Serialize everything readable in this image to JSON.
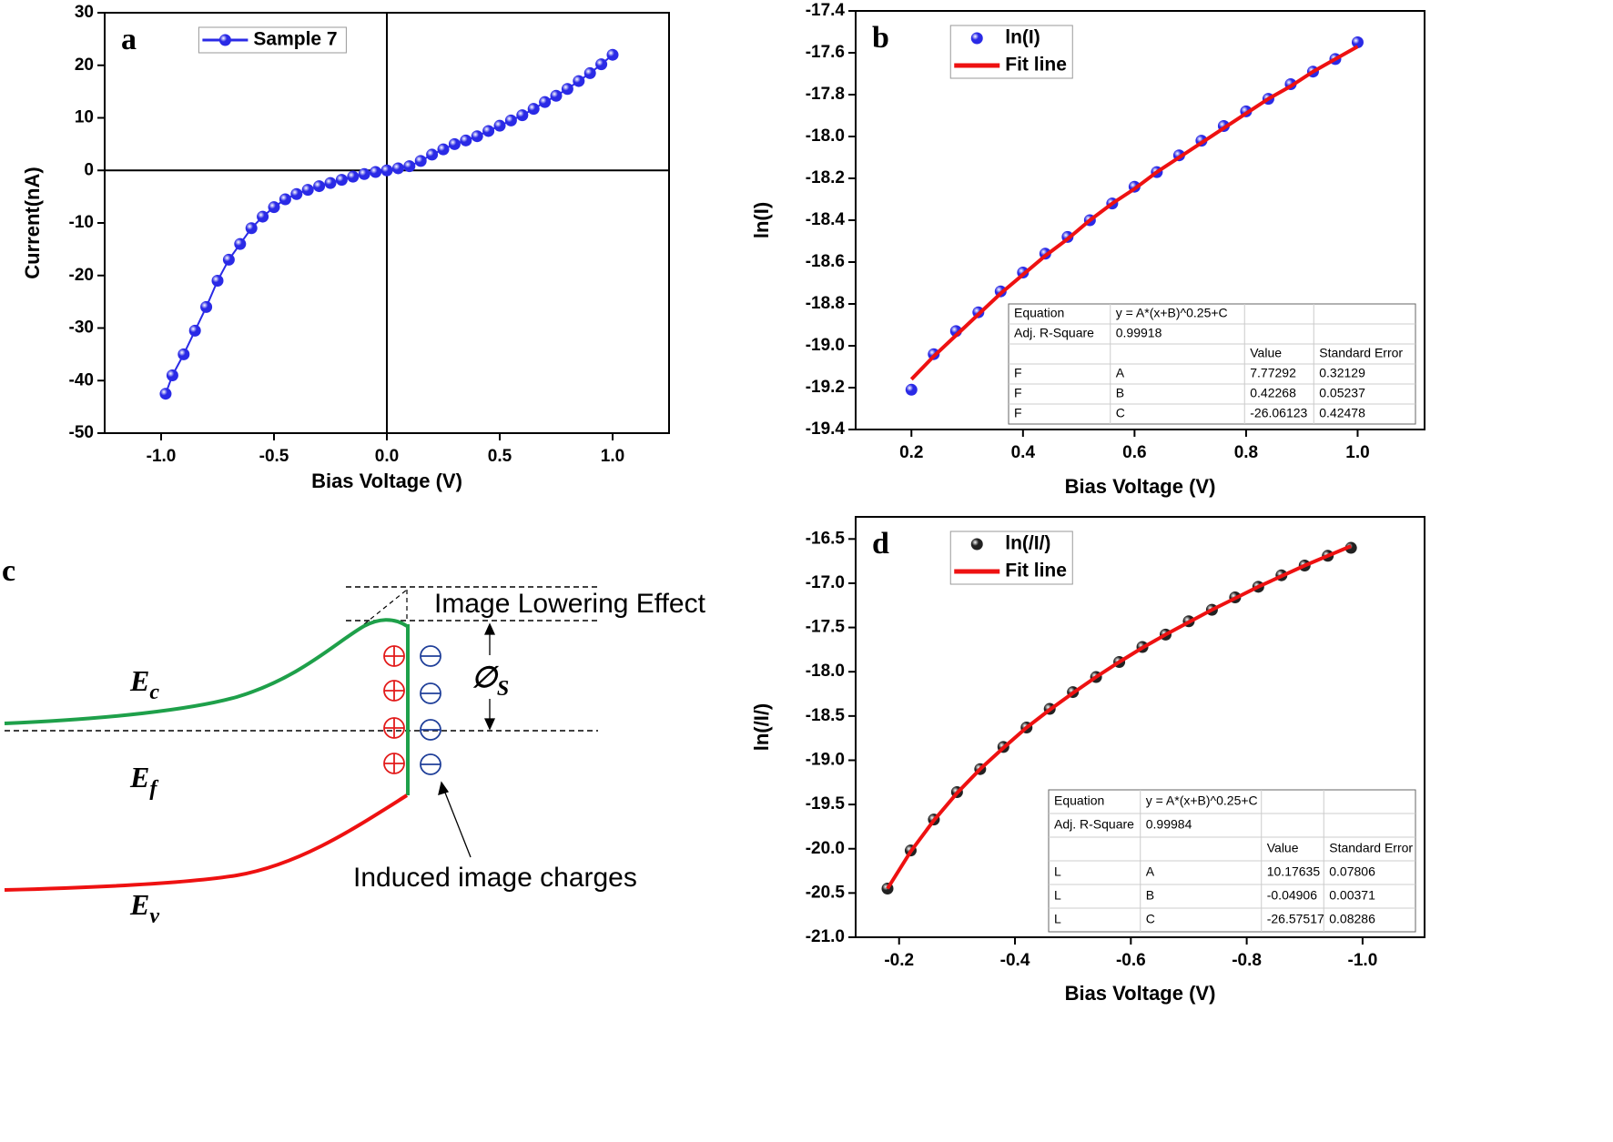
{
  "chart_data": [
    {
      "type": "scatter",
      "panel": "a",
      "x_label": "Bias Voltage (V)",
      "y_label": "Current(nA)",
      "x": [
        -0.98,
        -0.95,
        -0.9,
        -0.85,
        -0.8,
        -0.75,
        -0.7,
        -0.65,
        -0.6,
        -0.55,
        -0.5,
        -0.45,
        -0.4,
        -0.35,
        -0.3,
        -0.25,
        -0.2,
        -0.15,
        -0.1,
        -0.05,
        0,
        0.05,
        0.1,
        0.15,
        0.2,
        0.25,
        0.3,
        0.35,
        0.4,
        0.45,
        0.5,
        0.55,
        0.6,
        0.65,
        0.7,
        0.75,
        0.8,
        0.85,
        0.9,
        0.95,
        1.0
      ],
      "series": [
        {
          "name": "Sample 7",
          "color": "#2a2ae6",
          "marker": true,
          "line": true,
          "values": [
            -42.5,
            -39,
            -35,
            -30.5,
            -26,
            -21,
            -17,
            -14,
            -11,
            -8.8,
            -7,
            -5.5,
            -4.5,
            -3.7,
            -3,
            -2.4,
            -1.8,
            -1.2,
            -0.7,
            -0.3,
            0,
            0.4,
            0.8,
            1.8,
            3,
            4,
            5,
            5.7,
            6.5,
            7.5,
            8.5,
            9.5,
            10.5,
            11.7,
            13,
            14.2,
            15.5,
            17,
            18.5,
            20.2,
            22
          ]
        }
      ],
      "xlim": [
        -1.25,
        1.25
      ],
      "ylim": [
        -50,
        30
      ],
      "xticks": [
        {
          "value": -1,
          "label": "-1.0"
        },
        -0.5,
        {
          "value": 0,
          "label": "0.0"
        },
        0.5,
        {
          "value": 1,
          "label": "1.0"
        }
      ],
      "yticks": [
        -50,
        -40,
        -30,
        -20,
        -10,
        0,
        10,
        20,
        30
      ],
      "zero_lines": true,
      "legend": "upper left"
    },
    {
      "type": "scatter",
      "panel": "b",
      "x_label": "Bias Voltage (V)",
      "y_label": "ln(I)",
      "x": [
        0.2,
        0.24,
        0.28,
        0.32,
        0.36,
        0.4,
        0.44,
        0.48,
        0.52,
        0.56,
        0.6,
        0.64,
        0.68,
        0.72,
        0.76,
        0.8,
        0.84,
        0.88,
        0.92,
        0.96,
        1.0
      ],
      "series": [
        {
          "name": "ln(I)",
          "color": "#2a2ae6",
          "marker": true,
          "line": false,
          "values": [
            -19.21,
            -19.04,
            -18.93,
            -18.84,
            -18.74,
            -18.65,
            -18.56,
            -18.48,
            -18.4,
            -18.32,
            -18.24,
            -18.17,
            -18.09,
            -18.02,
            -17.95,
            -17.88,
            -17.82,
            -17.75,
            -17.69,
            -17.63,
            -17.55
          ]
        },
        {
          "name": "Fit line",
          "color": "#ee1111",
          "marker": false,
          "line": true,
          "values": [
            -19.16,
            -19.05,
            -18.95,
            -18.85,
            -18.75,
            -18.66,
            -18.57,
            -18.49,
            -18.4,
            -18.32,
            -18.25,
            -18.17,
            -18.1,
            -18.03,
            -17.96,
            -17.89,
            -17.82,
            -17.76,
            -17.69,
            -17.63,
            -17.57
          ]
        }
      ],
      "xlim": [
        0.1,
        1.12
      ],
      "ylim": [
        -19.4,
        -17.4
      ],
      "xticks": [
        0.2,
        0.4,
        0.6,
        0.8,
        {
          "value": 1,
          "label": "1.0"
        }
      ],
      "yticks": [
        -19.4,
        -19.2,
        {
          "value": -19,
          "label": "-19.0"
        },
        -18.8,
        -18.6,
        -18.4,
        -18.2,
        {
          "value": -18,
          "label": "-18.0"
        },
        -17.8,
        -17.6,
        -17.4
      ],
      "zero_lines": false,
      "legend": "upper left",
      "fit_table": {
        "equation_label": "Equation",
        "equation": "y =  A*(x+B)^0.25+C",
        "r2_label": "Adj. R-Square",
        "r2": "0.99918",
        "headers": [
          "Value",
          "Standard Error"
        ],
        "rows": [
          [
            "F",
            "A",
            "7.77292",
            "0.32129"
          ],
          [
            "F",
            "B",
            "0.42268",
            "0.05237"
          ],
          [
            "F",
            "C",
            "-26.06123",
            "0.42478"
          ]
        ]
      }
    },
    {
      "type": "scatter",
      "panel": "d",
      "x_label": "Bias Voltage (V)",
      "y_label": "ln(/I/)",
      "x": [
        -0.18,
        -0.22,
        -0.26,
        -0.3,
        -0.34,
        -0.38,
        -0.42,
        -0.46,
        -0.5,
        -0.54,
        -0.58,
        -0.62,
        -0.66,
        -0.7,
        -0.74,
        -0.78,
        -0.82,
        -0.86,
        -0.9,
        -0.94,
        -0.98
      ],
      "series": [
        {
          "name": "ln(/I/)",
          "color": "#222222",
          "marker": true,
          "line": false,
          "values": [
            -20.45,
            -20.02,
            -19.67,
            -19.36,
            -19.1,
            -18.85,
            -18.63,
            -18.42,
            -18.23,
            -18.06,
            -17.89,
            -17.72,
            -17.58,
            -17.43,
            -17.3,
            -17.16,
            -17.04,
            -16.91,
            -16.8,
            -16.69,
            -16.6
          ]
        },
        {
          "name": "Fit line",
          "color": "#ee1111",
          "marker": false,
          "line": true,
          "values": [
            -20.45,
            -20.03,
            -19.68,
            -19.37,
            -19.1,
            -18.86,
            -18.63,
            -18.43,
            -18.24,
            -18.06,
            -17.89,
            -17.73,
            -17.58,
            -17.44,
            -17.3,
            -17.17,
            -17.04,
            -16.92,
            -16.8,
            -16.69,
            -16.58
          ]
        }
      ],
      "xlim": [
        -0.125,
        -1.107
      ],
      "ylim": [
        -21,
        -16.25
      ],
      "xticks": [
        -0.2,
        -0.4,
        -0.6,
        -0.8,
        {
          "value": -1,
          "label": "-1.0"
        }
      ],
      "yticks": [
        {
          "value": -21,
          "label": "-21.0"
        },
        -20.5,
        {
          "value": -20,
          "label": "-20.0"
        },
        -19.5,
        {
          "value": -19,
          "label": "-19.0"
        },
        -18.5,
        {
          "value": -18,
          "label": "-18.0"
        },
        -17.5,
        {
          "value": -17,
          "label": "-17.0"
        },
        -16.5
      ],
      "zero_lines": false,
      "legend": "upper left",
      "fit_table": {
        "equation_label": "Equation",
        "equation": "y =  A*(x+B)^0.25+C",
        "r2_label": "Adj. R-Square",
        "r2": "0.99984",
        "headers": [
          "Value",
          "Standard Error"
        ],
        "rows": [
          [
            "L",
            "A",
            "10.17635",
            "0.07806"
          ],
          [
            "L",
            "B",
            "-0.04906",
            "0.00371"
          ],
          [
            "L",
            "C",
            "-26.57517",
            "0.08286"
          ]
        ]
      }
    }
  ],
  "diagram": {
    "panel": "c",
    "image_lowering": "Image Lowering Effect",
    "induced": "Induced image charges",
    "ec": {
      "symbol": "E",
      "sub": "c"
    },
    "ef": {
      "symbol": "E",
      "sub": "f"
    },
    "ev": {
      "symbol": "E",
      "sub": "v"
    },
    "phi": {
      "symbol": "∅",
      "sub": "S"
    }
  }
}
